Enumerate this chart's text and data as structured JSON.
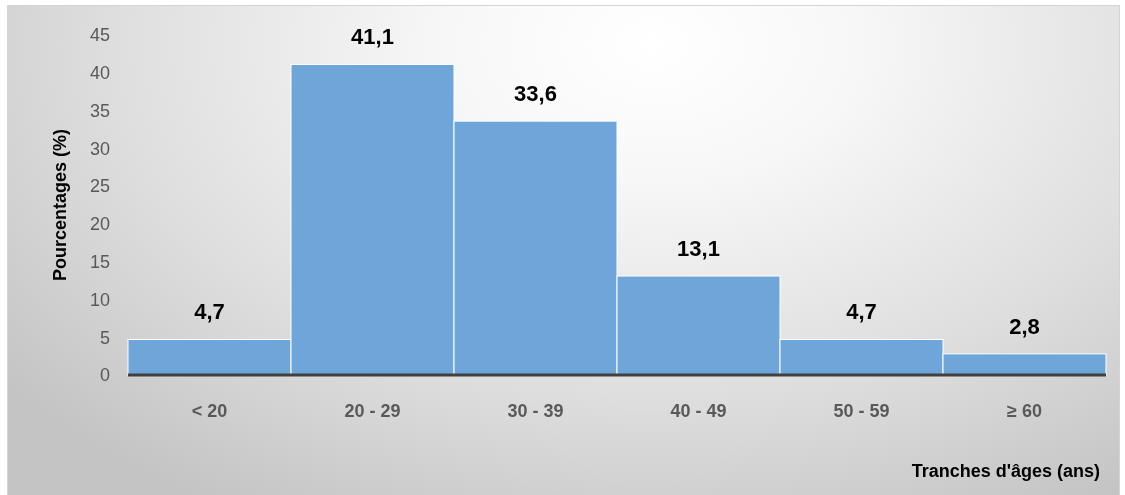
{
  "chart_data": {
    "type": "bar",
    "xlabel": "Tranches d'âges (ans)",
    "ylabel": "Pourcentages (%)",
    "categories": [
      "< 20",
      "20 - 29",
      "30 - 39",
      "40 - 49",
      "50 - 59",
      "≥ 60"
    ],
    "values": [
      4.7,
      41.1,
      33.6,
      13.1,
      4.7,
      2.8
    ],
    "value_labels": [
      "4,7",
      "41,1",
      "33,6",
      "13,1",
      "4,7",
      "2,8"
    ],
    "color": "#6fa6d9",
    "ylim": [
      0,
      45
    ],
    "yticks": [
      0,
      5,
      10,
      15,
      20,
      25,
      30,
      35,
      40,
      45
    ]
  }
}
